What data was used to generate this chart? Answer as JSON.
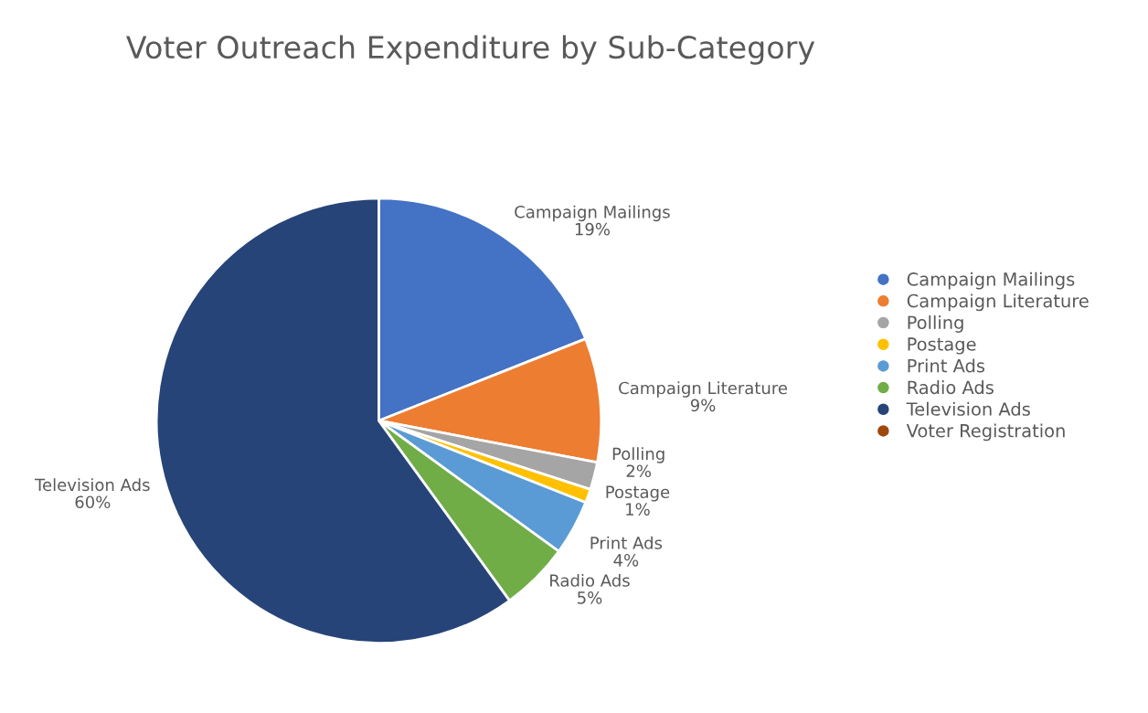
{
  "chart_data": {
    "type": "pie",
    "title": "Voter Outreach Expenditure by Sub-Category",
    "categories": [
      "Campaign Mailings",
      "Campaign Literature",
      "Polling",
      "Postage",
      "Print Ads",
      "Radio Ads",
      "Television Ads",
      "Voter Registration"
    ],
    "values": [
      19,
      9,
      2,
      1,
      4,
      5,
      60,
      0
    ],
    "colors": [
      "#4472c4",
      "#ed7d31",
      "#a5a5a5",
      "#ffc000",
      "#5b9bd5",
      "#70ad47",
      "#264478",
      "#9e480e"
    ],
    "value_labels": [
      "19%",
      "9%",
      "2%",
      "1%",
      "4%",
      "5%",
      "60%",
      null
    ],
    "legend": "right"
  }
}
